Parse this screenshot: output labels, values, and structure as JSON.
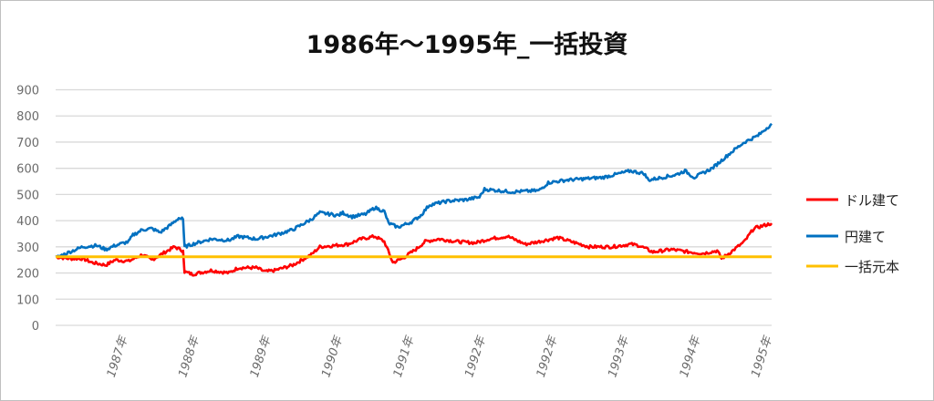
{
  "chart_data": {
    "type": "line",
    "title": "1986年～1995年_一括投資",
    "xlabel": "",
    "ylabel": "",
    "ylim": [
      0,
      900
    ],
    "xlim": [
      0,
      10
    ],
    "yticks": [
      0,
      100,
      200,
      300,
      400,
      500,
      600,
      700,
      800,
      900
    ],
    "xtick_labels": [
      "1987年",
      "1988年",
      "1989年",
      "1990年",
      "1991年",
      "1992年",
      "1992年",
      "1993年",
      "1994年",
      "1995年"
    ],
    "xtick_positions": [
      1,
      2,
      3,
      4,
      5,
      6,
      7,
      8,
      9,
      10
    ],
    "grid": true,
    "legend_position": "right",
    "series": [
      {
        "name": "ドル建て",
        "color": "#ff0000",
        "x": [
          0,
          0.19,
          0.38,
          0.51,
          0.7,
          0.83,
          1.02,
          1.21,
          1.34,
          1.53,
          1.66,
          1.78,
          1.8,
          1.91,
          2.17,
          2.42,
          2.55,
          2.8,
          2.93,
          3.06,
          3.31,
          3.57,
          3.69,
          3.89,
          4.08,
          4.27,
          4.46,
          4.59,
          4.71,
          4.84,
          5.03,
          5.16,
          5.35,
          5.61,
          5.86,
          6.05,
          6.31,
          6.56,
          6.75,
          7.01,
          7.2,
          7.45,
          7.77,
          8.03,
          8.15,
          8.34,
          8.6,
          8.85,
          9.04,
          9.24,
          9.3,
          9.43,
          9.62,
          9.75,
          10.0
        ],
        "y": [
          262,
          255,
          255,
          240,
          230,
          250,
          245,
          270,
          250,
          280,
          300,
          285,
          205,
          195,
          210,
          200,
          220,
          220,
          205,
          210,
          230,
          270,
          300,
          305,
          310,
          330,
          340,
          320,
          240,
          255,
          290,
          320,
          330,
          320,
          315,
          330,
          340,
          310,
          320,
          335,
          320,
          300,
          300,
          310,
          305,
          280,
          290,
          280,
          275,
          285,
          255,
          280,
          320,
          370,
          390
        ]
      },
      {
        "name": "円建て",
        "color": "#0070c0",
        "x": [
          0,
          0.19,
          0.38,
          0.57,
          0.7,
          0.83,
          1.02,
          1.08,
          1.21,
          1.34,
          1.46,
          1.59,
          1.72,
          1.78,
          1.8,
          1.91,
          2.17,
          2.42,
          2.55,
          2.8,
          3.06,
          3.31,
          3.57,
          3.69,
          3.95,
          4.01,
          4.14,
          4.33,
          4.46,
          4.59,
          4.65,
          4.78,
          4.97,
          5.1,
          5.22,
          5.48,
          5.73,
          5.92,
          5.99,
          6.37,
          6.75,
          6.88,
          7.13,
          7.39,
          7.64,
          8.03,
          8.22,
          8.28,
          8.66,
          8.79,
          8.92,
          9.17,
          9.43,
          9.62,
          9.81,
          10.0
        ],
        "y": [
          258,
          280,
          300,
          305,
          290,
          305,
          320,
          345,
          365,
          370,
          355,
          380,
          410,
          405,
          300,
          310,
          330,
          325,
          340,
          330,
          345,
          365,
          405,
          430,
          420,
          430,
          415,
          425,
          450,
          435,
          390,
          375,
          395,
          420,
          460,
          475,
          480,
          490,
          520,
          510,
          515,
          545,
          555,
          560,
          565,
          590,
          580,
          555,
          575,
          590,
          565,
          600,
          660,
          700,
          725,
          770
        ]
      },
      {
        "name": "一括元本",
        "color": "#ffc000",
        "x": [
          0,
          10
        ],
        "y": [
          262,
          262
        ]
      }
    ]
  }
}
